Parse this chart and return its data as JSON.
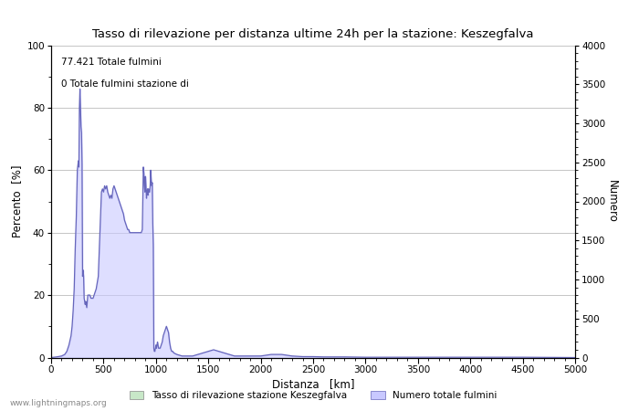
{
  "title": "Tasso di rilevazione per distanza ultime 24h per la stazione: Keszegfalva",
  "xlabel": "Distanza   [km]",
  "ylabel_left": "Percento  [%]",
  "ylabel_right": "Numero",
  "annotation_line1": "77.421 Totale fulmini",
  "annotation_line2": "0 Totale fulmini stazione di",
  "legend_label1": "Tasso di rilevazione stazione Keszegfalva",
  "legend_label2": "Numero totale fulmini",
  "watermark": "www.lightningmaps.org",
  "xlim": [
    0,
    5000
  ],
  "ylim_left": [
    0,
    100
  ],
  "ylim_right": [
    0,
    4000
  ],
  "fill_color": "#c8c8ff",
  "line_color": "#6666bb",
  "green_fill_color": "#c8e8c8",
  "background_color": "#ffffff",
  "grid_color": "#bbbbbb",
  "x_ticks": [
    0,
    500,
    1000,
    1500,
    2000,
    2500,
    3000,
    3500,
    4000,
    4500,
    5000
  ],
  "y_ticks_left": [
    0,
    20,
    40,
    60,
    80,
    100
  ],
  "y_ticks_right": [
    0,
    500,
    1000,
    1500,
    2000,
    2500,
    3000,
    3500,
    4000
  ],
  "percent_data": [
    [
      0,
      0
    ],
    [
      50,
      0.2
    ],
    [
      100,
      0.5
    ],
    [
      130,
      1
    ],
    [
      150,
      2
    ],
    [
      170,
      4
    ],
    [
      190,
      7
    ],
    [
      200,
      10
    ],
    [
      210,
      15
    ],
    [
      220,
      22
    ],
    [
      230,
      35
    ],
    [
      240,
      45
    ],
    [
      250,
      60
    ],
    [
      260,
      63
    ],
    [
      265,
      61
    ],
    [
      270,
      80
    ],
    [
      275,
      86
    ],
    [
      280,
      80
    ],
    [
      285,
      74
    ],
    [
      290,
      72
    ],
    [
      295,
      62
    ],
    [
      300,
      26
    ],
    [
      305,
      28
    ],
    [
      310,
      26
    ],
    [
      315,
      19
    ],
    [
      320,
      18
    ],
    [
      325,
      17
    ],
    [
      330,
      18
    ],
    [
      335,
      17
    ],
    [
      340,
      16
    ],
    [
      350,
      20
    ],
    [
      360,
      20
    ],
    [
      370,
      20
    ],
    [
      380,
      19
    ],
    [
      390,
      19
    ],
    [
      400,
      19
    ],
    [
      410,
      20
    ],
    [
      420,
      21
    ],
    [
      430,
      22
    ],
    [
      440,
      24
    ],
    [
      450,
      26
    ],
    [
      460,
      35
    ],
    [
      470,
      44
    ],
    [
      480,
      53
    ],
    [
      490,
      54
    ],
    [
      500,
      53
    ],
    [
      510,
      55
    ],
    [
      520,
      54
    ],
    [
      530,
      55
    ],
    [
      540,
      53
    ],
    [
      550,
      52
    ],
    [
      560,
      51
    ],
    [
      570,
      52
    ],
    [
      580,
      51
    ],
    [
      590,
      54
    ],
    [
      600,
      55
    ],
    [
      610,
      54
    ],
    [
      620,
      53
    ],
    [
      630,
      52
    ],
    [
      640,
      51
    ],
    [
      650,
      50
    ],
    [
      660,
      49
    ],
    [
      670,
      48
    ],
    [
      680,
      47
    ],
    [
      690,
      46
    ],
    [
      700,
      44
    ],
    [
      710,
      43
    ],
    [
      720,
      42
    ],
    [
      730,
      41
    ],
    [
      740,
      41
    ],
    [
      750,
      40
    ],
    [
      760,
      40
    ],
    [
      770,
      40
    ],
    [
      780,
      40
    ],
    [
      790,
      40
    ],
    [
      800,
      40
    ],
    [
      810,
      40
    ],
    [
      820,
      40
    ],
    [
      830,
      40
    ],
    [
      840,
      40
    ],
    [
      850,
      40
    ],
    [
      860,
      40
    ],
    [
      870,
      41
    ],
    [
      880,
      61
    ],
    [
      885,
      59
    ],
    [
      890,
      55
    ],
    [
      895,
      53
    ],
    [
      900,
      58
    ],
    [
      905,
      55
    ],
    [
      910,
      51
    ],
    [
      915,
      53
    ],
    [
      920,
      54
    ],
    [
      925,
      52
    ],
    [
      930,
      54
    ],
    [
      935,
      53
    ],
    [
      940,
      53
    ],
    [
      945,
      55
    ],
    [
      950,
      60
    ],
    [
      955,
      57
    ],
    [
      960,
      55
    ],
    [
      965,
      56
    ],
    [
      970,
      43
    ],
    [
      975,
      36
    ],
    [
      980,
      3
    ],
    [
      985,
      2
    ],
    [
      990,
      2
    ],
    [
      995,
      3
    ],
    [
      1000,
      4
    ],
    [
      1005,
      3
    ],
    [
      1010,
      4
    ],
    [
      1015,
      5
    ],
    [
      1020,
      4
    ],
    [
      1025,
      3
    ],
    [
      1030,
      3
    ],
    [
      1035,
      3
    ],
    [
      1040,
      3
    ],
    [
      1050,
      4
    ],
    [
      1060,
      5
    ],
    [
      1070,
      7
    ],
    [
      1080,
      8
    ],
    [
      1090,
      9
    ],
    [
      1100,
      10
    ],
    [
      1110,
      9
    ],
    [
      1120,
      8
    ],
    [
      1130,
      5
    ],
    [
      1140,
      3
    ],
    [
      1150,
      2
    ],
    [
      1160,
      2
    ],
    [
      1170,
      1.5
    ],
    [
      1200,
      1
    ],
    [
      1250,
      0.5
    ],
    [
      1300,
      0.5
    ],
    [
      1350,
      0.5
    ],
    [
      1400,
      1
    ],
    [
      1450,
      1.5
    ],
    [
      1500,
      2
    ],
    [
      1550,
      2.5
    ],
    [
      1600,
      2
    ],
    [
      1650,
      1.5
    ],
    [
      1700,
      1
    ],
    [
      1750,
      0.5
    ],
    [
      1800,
      0.5
    ],
    [
      1900,
      0.5
    ],
    [
      2000,
      0.5
    ],
    [
      2100,
      1
    ],
    [
      2200,
      1
    ],
    [
      2300,
      0.5
    ],
    [
      2400,
      0.3
    ],
    [
      2500,
      0.3
    ],
    [
      2600,
      0.2
    ],
    [
      2700,
      0.2
    ],
    [
      2800,
      0.2
    ],
    [
      3000,
      0.1
    ],
    [
      3500,
      0.1
    ],
    [
      4000,
      0.1
    ],
    [
      4500,
      0.1
    ],
    [
      5000,
      0
    ]
  ]
}
